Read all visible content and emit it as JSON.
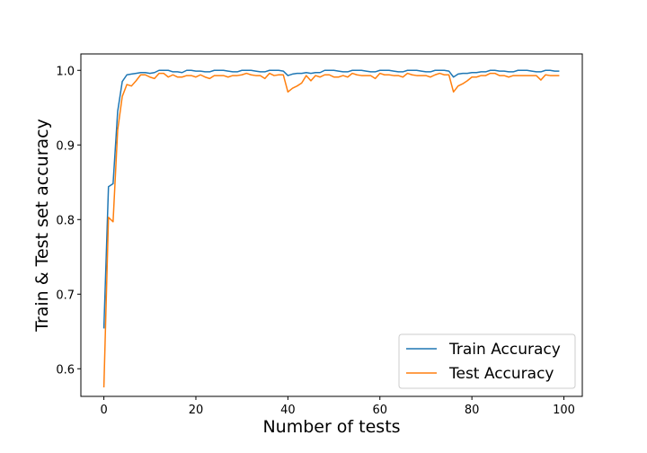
{
  "chart_data": {
    "type": "line",
    "title": "",
    "xlabel": "Number of tests",
    "ylabel": "Train & Test set accuracy",
    "xlim": [
      -5,
      104
    ],
    "ylim": [
      0.563,
      1.022
    ],
    "x_ticks": [
      0,
      20,
      40,
      60,
      80,
      100
    ],
    "y_ticks": [
      0.6,
      0.7,
      0.8,
      0.9,
      1.0
    ],
    "x_tick_labels": [
      "0",
      "20",
      "40",
      "60",
      "80",
      "100"
    ],
    "y_tick_labels": [
      "0.6",
      "0.7",
      "0.8",
      "0.9",
      "1.0"
    ],
    "grid": false,
    "legend_position": "bottom-right",
    "x": [
      0,
      1,
      2,
      3,
      4,
      5,
      6,
      7,
      8,
      9,
      10,
      11,
      12,
      13,
      14,
      15,
      16,
      17,
      18,
      19,
      20,
      21,
      22,
      23,
      24,
      25,
      26,
      27,
      28,
      29,
      30,
      31,
      32,
      33,
      34,
      35,
      36,
      37,
      38,
      39,
      40,
      41,
      42,
      43,
      44,
      45,
      46,
      47,
      48,
      49,
      50,
      51,
      52,
      53,
      54,
      55,
      56,
      57,
      58,
      59,
      60,
      61,
      62,
      63,
      64,
      65,
      66,
      67,
      68,
      69,
      70,
      71,
      72,
      73,
      74,
      75,
      76,
      77,
      78,
      79,
      80,
      81,
      82,
      83,
      84,
      85,
      86,
      87,
      88,
      89,
      90,
      91,
      92,
      93,
      94,
      95,
      96,
      97,
      98,
      99
    ],
    "series": [
      {
        "name": "Train Accuracy",
        "color": "#1f77b4",
        "values": [
          0.654,
          0.844,
          0.848,
          0.945,
          0.985,
          0.994,
          0.995,
          0.996,
          0.997,
          0.997,
          0.996,
          0.997,
          1.0,
          1.0,
          1.0,
          0.998,
          0.998,
          0.997,
          1.0,
          1.0,
          0.999,
          0.999,
          0.998,
          0.998,
          1.0,
          1.0,
          1.0,
          0.999,
          0.998,
          0.998,
          1.0,
          1.0,
          1.0,
          0.999,
          0.998,
          0.998,
          1.0,
          1.0,
          1.0,
          0.999,
          0.993,
          0.995,
          0.996,
          0.996,
          0.997,
          0.996,
          0.997,
          0.997,
          1.0,
          1.0,
          1.0,
          0.999,
          0.998,
          0.998,
          1.0,
          1.0,
          1.0,
          0.999,
          0.998,
          0.998,
          1.0,
          1.0,
          1.0,
          0.999,
          0.998,
          0.998,
          1.0,
          1.0,
          1.0,
          0.999,
          0.998,
          0.998,
          1.0,
          1.0,
          1.0,
          0.999,
          0.991,
          0.995,
          0.996,
          0.996,
          0.997,
          0.997,
          0.998,
          0.998,
          1.0,
          1.0,
          0.999,
          0.999,
          0.998,
          0.998,
          1.0,
          1.0,
          1.0,
          0.999,
          0.998,
          0.998,
          1.0,
          1.0,
          0.999,
          0.999
        ]
      },
      {
        "name": "Test Accuracy",
        "color": "#ff7f0e",
        "values": [
          0.575,
          0.803,
          0.797,
          0.92,
          0.965,
          0.981,
          0.979,
          0.986,
          0.994,
          0.994,
          0.991,
          0.989,
          0.996,
          0.996,
          0.991,
          0.994,
          0.991,
          0.991,
          0.993,
          0.993,
          0.991,
          0.994,
          0.991,
          0.989,
          0.993,
          0.993,
          0.993,
          0.991,
          0.993,
          0.993,
          0.994,
          0.996,
          0.994,
          0.993,
          0.993,
          0.989,
          0.996,
          0.993,
          0.994,
          0.994,
          0.971,
          0.976,
          0.979,
          0.983,
          0.993,
          0.986,
          0.993,
          0.991,
          0.994,
          0.994,
          0.991,
          0.991,
          0.993,
          0.991,
          0.996,
          0.994,
          0.993,
          0.993,
          0.993,
          0.989,
          0.996,
          0.994,
          0.994,
          0.993,
          0.993,
          0.991,
          0.996,
          0.994,
          0.993,
          0.993,
          0.993,
          0.991,
          0.994,
          0.996,
          0.994,
          0.994,
          0.971,
          0.979,
          0.982,
          0.986,
          0.991,
          0.991,
          0.993,
          0.993,
          0.996,
          0.996,
          0.993,
          0.993,
          0.991,
          0.993,
          0.993,
          0.993,
          0.993,
          0.993,
          0.993,
          0.987,
          0.994,
          0.993,
          0.993,
          0.993
        ]
      }
    ]
  }
}
